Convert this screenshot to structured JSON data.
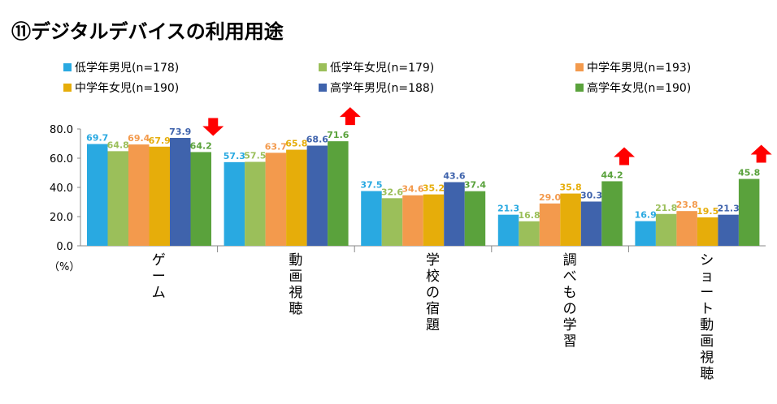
{
  "chart_data": {
    "type": "bar",
    "title": "⑪デジタルデバイスの利用用途",
    "ylabel": "（%）",
    "ylim": [
      0,
      80
    ],
    "yticks": [
      "80.0",
      "60.0",
      "40.0",
      "20.0",
      "0.0"
    ],
    "categories": [
      "ゲーム",
      "動画視聴",
      "学校の宿題",
      "調べもの学習",
      "ショート動画視聴"
    ],
    "series": [
      {
        "name": "低学年男児(n=178)",
        "color": "#29a9e1",
        "values": [
          69.7,
          57.3,
          37.5,
          21.3,
          16.9
        ]
      },
      {
        "name": "低学年女児(n=179)",
        "color": "#9bbf5a",
        "values": [
          64.8,
          57.5,
          32.6,
          16.8,
          21.8
        ]
      },
      {
        "name": "中学年男児(n=193)",
        "color": "#f39a4d",
        "values": [
          69.4,
          63.7,
          34.6,
          29.0,
          23.8
        ]
      },
      {
        "name": "中学年女児(n=190)",
        "color": "#e6ad0a",
        "values": [
          67.9,
          65.8,
          35.2,
          35.8,
          19.5
        ]
      },
      {
        "name": "高学年男児(n=188)",
        "color": "#3f63ac",
        "values": [
          73.9,
          68.6,
          43.6,
          30.3,
          21.3
        ]
      },
      {
        "name": "高学年女児(n=190)",
        "color": "#5aa23c",
        "values": [
          64.2,
          71.6,
          37.4,
          44.2,
          45.8
        ]
      }
    ],
    "arrows": [
      {
        "category": "ゲーム",
        "direction": "down"
      },
      {
        "category": "動画視聴",
        "direction": "up"
      },
      {
        "category": "調べもの学習",
        "direction": "up"
      },
      {
        "category": "ショート動画視聴",
        "direction": "up"
      }
    ],
    "arrow_color": "#ff0000"
  }
}
